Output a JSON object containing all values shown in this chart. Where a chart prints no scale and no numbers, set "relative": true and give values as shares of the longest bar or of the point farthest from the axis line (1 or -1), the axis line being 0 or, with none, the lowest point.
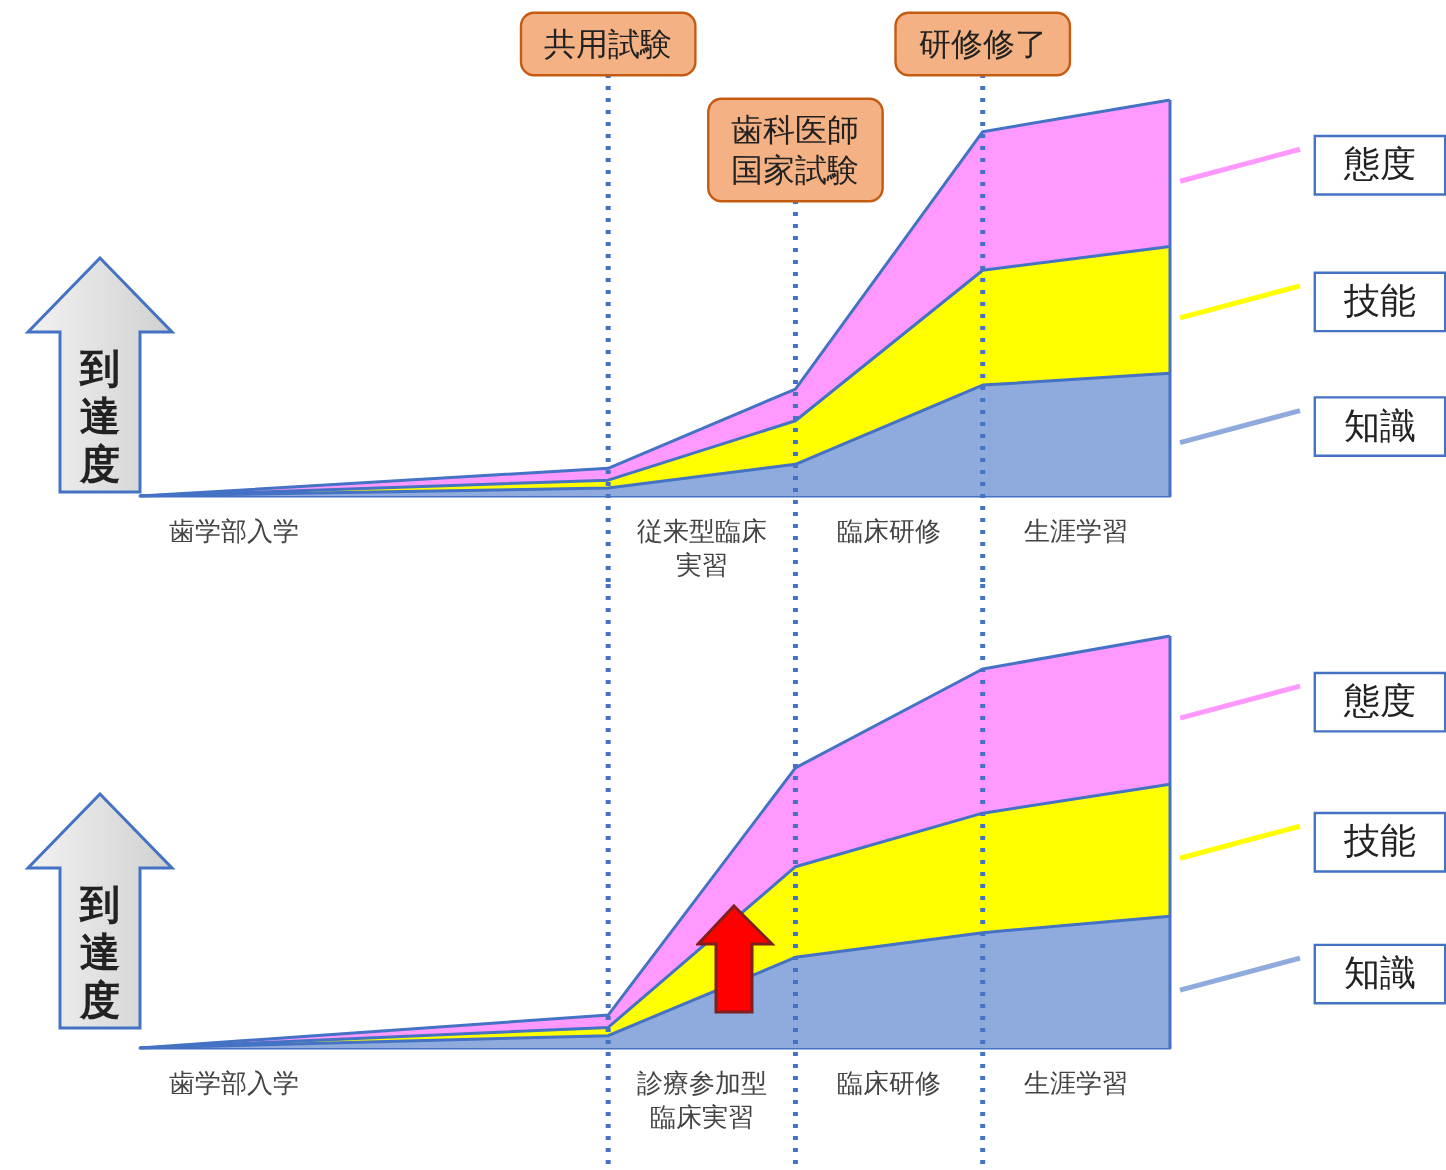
{
  "chart_data": [
    {
      "type": "area",
      "stacked": true,
      "relative": true,
      "ylabel": "到達度",
      "categories": [
        null,
        "歯学部入学",
        null,
        null,
        null,
        null,
        "従来型臨床実習",
        null,
        "臨床研修",
        null,
        "生涯学習",
        null
      ],
      "series": [
        {
          "name": "知識",
          "color": "#8faadc",
          "values": [
            0,
            null,
            null,
            null,
            null,
            0.02,
            null,
            0.08,
            null,
            0.28,
            null,
            0.31
          ]
        },
        {
          "name": "技能",
          "color": "#ffff00",
          "values": [
            0,
            null,
            null,
            null,
            null,
            0.02,
            null,
            0.11,
            null,
            0.29,
            null,
            0.32
          ]
        },
        {
          "name": "態度",
          "color": "#ff99ff",
          "values": [
            0,
            null,
            null,
            null,
            null,
            0.03,
            null,
            0.08,
            null,
            0.35,
            null,
            0.37
          ]
        }
      ],
      "annotations": [
        "共用試験",
        "歯科医師国家試験",
        "研修修了"
      ],
      "grid": "x",
      "legend": "right",
      "marker": "none",
      "tick_labels": "x"
    },
    {
      "type": "area",
      "stacked": true,
      "relative": true,
      "ylabel": "到達度",
      "categories": [
        null,
        "歯学部入学",
        null,
        null,
        null,
        null,
        "診療参加型臨床実習",
        null,
        "臨床研修",
        null,
        "生涯学習",
        null
      ],
      "series": [
        {
          "name": "知識",
          "color": "#8faadc",
          "values": [
            0,
            null,
            null,
            null,
            null,
            0.03,
            null,
            0.22,
            null,
            0.28,
            null,
            0.32
          ]
        },
        {
          "name": "技能",
          "color": "#ffff00",
          "values": [
            0,
            null,
            null,
            null,
            null,
            0.02,
            null,
            0.22,
            null,
            0.29,
            null,
            0.32
          ]
        },
        {
          "name": "態度",
          "color": "#ff99ff",
          "values": [
            0,
            null,
            null,
            null,
            null,
            0.03,
            null,
            0.24,
            null,
            0.35,
            null,
            0.36
          ]
        }
      ],
      "grid": "x",
      "legend": "right",
      "marker": "none",
      "tick_labels": "x"
    }
  ]
}
